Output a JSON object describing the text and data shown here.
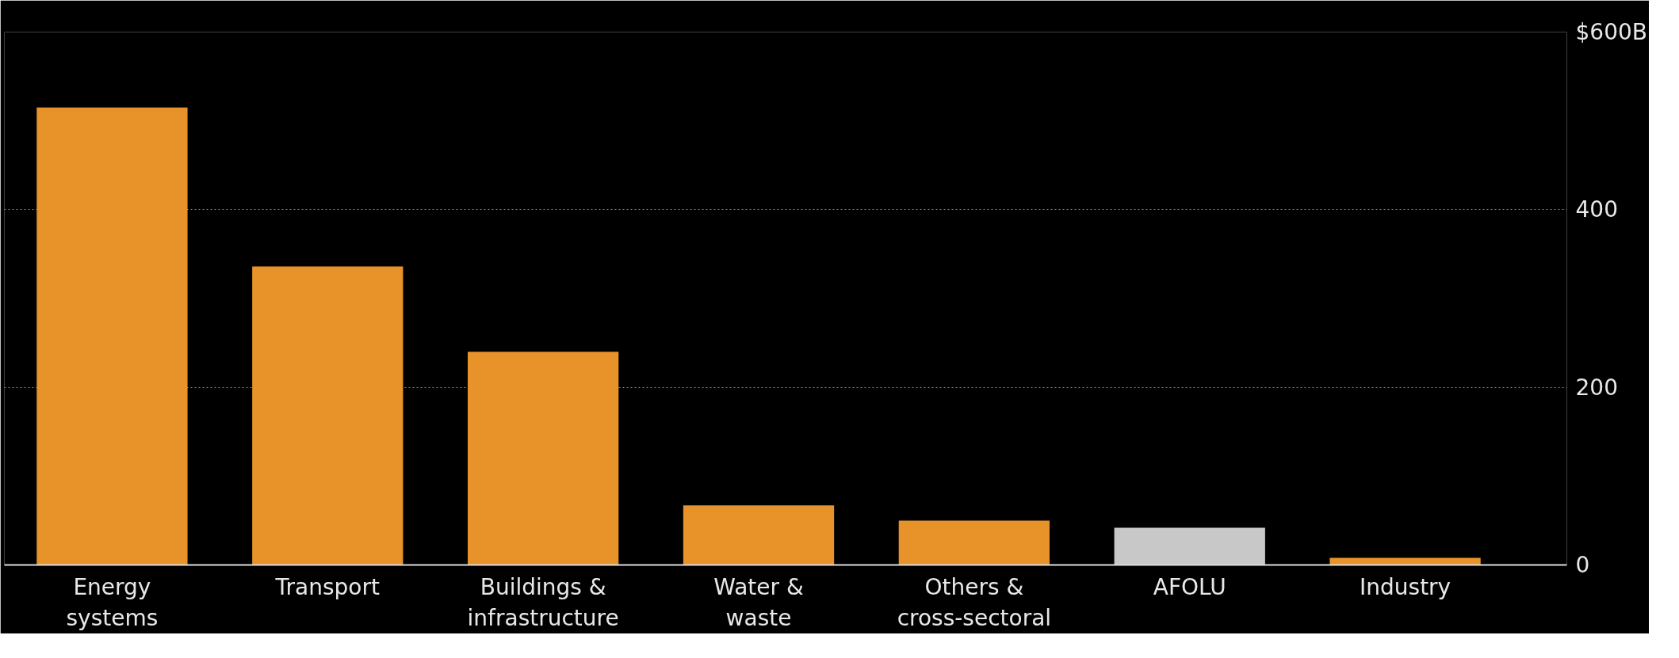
{
  "chart_data": {
    "type": "bar",
    "categories": [
      "Energy\nsystems",
      "Transport",
      "Buildings &\ninfrastructure",
      "Water &\nwaste",
      "Others &\ncross-sectoral",
      "AFOLU",
      "Industry"
    ],
    "values": [
      515,
      336,
      240,
      67,
      50,
      42,
      8
    ],
    "colors": [
      "#e8922a",
      "#e8922a",
      "#e8922a",
      "#e8922a",
      "#e8922a",
      "#c8c8c8",
      "#e8922a"
    ],
    "ylim": [
      0,
      600
    ],
    "yticks": [
      0,
      200,
      400,
      {
        "value": 600,
        "label": "$600B"
      }
    ],
    "grid": "y"
  }
}
